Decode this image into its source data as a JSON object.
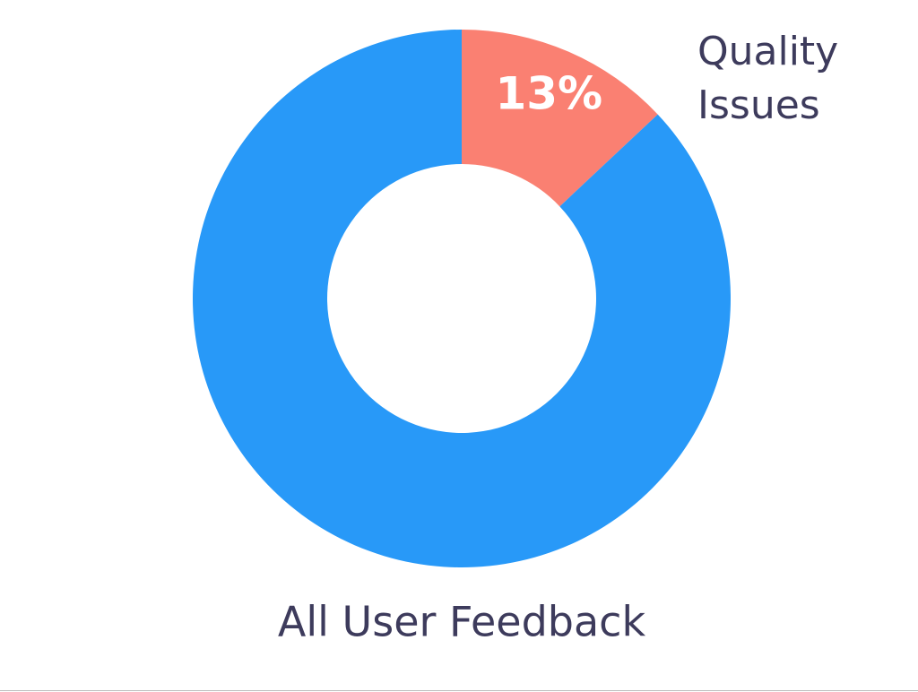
{
  "chart_data": {
    "type": "donut",
    "categories": [
      "Quality Issues",
      null
    ],
    "values": [
      13,
      87
    ],
    "value_labels": [
      "13%",
      null
    ],
    "colors": [
      "#fa8072",
      "#2899f8"
    ],
    "caption": "All User Feedback"
  }
}
